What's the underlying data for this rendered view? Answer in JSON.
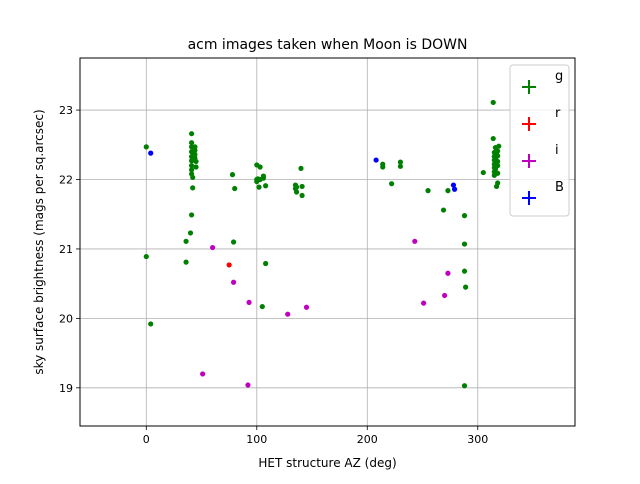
{
  "chart_data": {
    "type": "scatter",
    "title": "acm images taken when Moon is DOWN",
    "xlabel": "HET structure AZ (deg)",
    "ylabel": "sky surface brightness (mags per sq.arcsec)",
    "xlim": [
      -60,
      388
    ],
    "ylim": [
      18.45,
      23.75
    ],
    "xticks": [
      0,
      100,
      200,
      300
    ],
    "yticks": [
      19,
      20,
      21,
      22,
      23
    ],
    "grid": true,
    "legend_position": "top-right",
    "series": [
      {
        "name": "g",
        "color": "#008000",
        "points": [
          [
            0,
            22.47
          ],
          [
            0,
            20.89
          ],
          [
            4,
            19.92
          ],
          [
            36,
            21.11
          ],
          [
            36,
            20.81
          ],
          [
            40,
            21.23
          ],
          [
            41,
            21.49
          ],
          [
            41,
            22.66
          ],
          [
            41,
            22.53
          ],
          [
            41,
            22.47
          ],
          [
            41,
            22.4
          ],
          [
            41,
            22.33
          ],
          [
            41,
            22.27
          ],
          [
            41,
            22.2
          ],
          [
            41,
            22.14
          ],
          [
            41,
            22.08
          ],
          [
            42,
            22.03
          ],
          [
            42,
            21.88
          ],
          [
            44,
            22.42
          ],
          [
            44,
            22.31
          ],
          [
            45,
            22.26
          ],
          [
            45,
            22.18
          ],
          [
            44,
            22.47
          ],
          [
            44,
            22.36
          ],
          [
            78,
            22.07
          ],
          [
            79,
            21.1
          ],
          [
            80,
            21.87
          ],
          [
            100,
            22.21
          ],
          [
            100,
            22.0
          ],
          [
            100,
            21.97
          ],
          [
            101,
            22.01
          ],
          [
            102,
            21.89
          ],
          [
            103,
            22.18
          ],
          [
            103,
            22.0
          ],
          [
            105,
            20.17
          ],
          [
            106,
            22.02
          ],
          [
            106,
            22.05
          ],
          [
            108,
            21.91
          ],
          [
            108,
            20.79
          ],
          [
            135,
            21.92
          ],
          [
            135,
            21.87
          ],
          [
            136,
            21.89
          ],
          [
            136,
            21.82
          ],
          [
            140,
            22.16
          ],
          [
            141,
            21.9
          ],
          [
            141,
            21.77
          ],
          [
            214,
            22.22
          ],
          [
            214,
            22.18
          ],
          [
            222,
            21.94
          ],
          [
            230,
            22.25
          ],
          [
            230,
            22.19
          ],
          [
            255,
            21.84
          ],
          [
            269,
            21.56
          ],
          [
            273,
            21.84
          ],
          [
            288,
            19.03
          ],
          [
            288,
            21.48
          ],
          [
            288,
            21.07
          ],
          [
            288,
            20.68
          ],
          [
            289,
            20.45
          ],
          [
            305,
            22.1
          ],
          [
            314,
            23.11
          ],
          [
            314,
            22.59
          ],
          [
            315,
            22.39
          ],
          [
            315,
            22.33
          ],
          [
            315,
            22.28
          ],
          [
            315,
            22.22
          ],
          [
            315,
            22.17
          ],
          [
            315,
            22.11
          ],
          [
            315,
            22.06
          ],
          [
            316,
            22.46
          ],
          [
            316,
            22.36
          ],
          [
            316,
            22.3
          ],
          [
            316,
            22.15
          ],
          [
            317,
            21.9
          ],
          [
            318,
            22.41
          ],
          [
            318,
            22.34
          ],
          [
            318,
            22.26
          ],
          [
            318,
            22.2
          ],
          [
            318,
            22.09
          ],
          [
            318,
            21.95
          ],
          [
            319,
            22.48
          ]
        ]
      },
      {
        "name": "r",
        "color": "#ff0000",
        "points": [
          [
            75,
            20.77
          ]
        ]
      },
      {
        "name": "i",
        "color": "#bf00bf",
        "points": [
          [
            51,
            19.2
          ],
          [
            60,
            21.02
          ],
          [
            79,
            20.52
          ],
          [
            92,
            19.04
          ],
          [
            93,
            20.23
          ],
          [
            128,
            20.06
          ],
          [
            145,
            20.16
          ],
          [
            243,
            21.11
          ],
          [
            251,
            20.22
          ],
          [
            270,
            20.33
          ],
          [
            273,
            20.65
          ]
        ]
      },
      {
        "name": "B",
        "color": "#0000ff",
        "points": [
          [
            4,
            22.38
          ],
          [
            208,
            22.28
          ],
          [
            278,
            21.92
          ],
          [
            279,
            21.86
          ]
        ]
      }
    ]
  }
}
